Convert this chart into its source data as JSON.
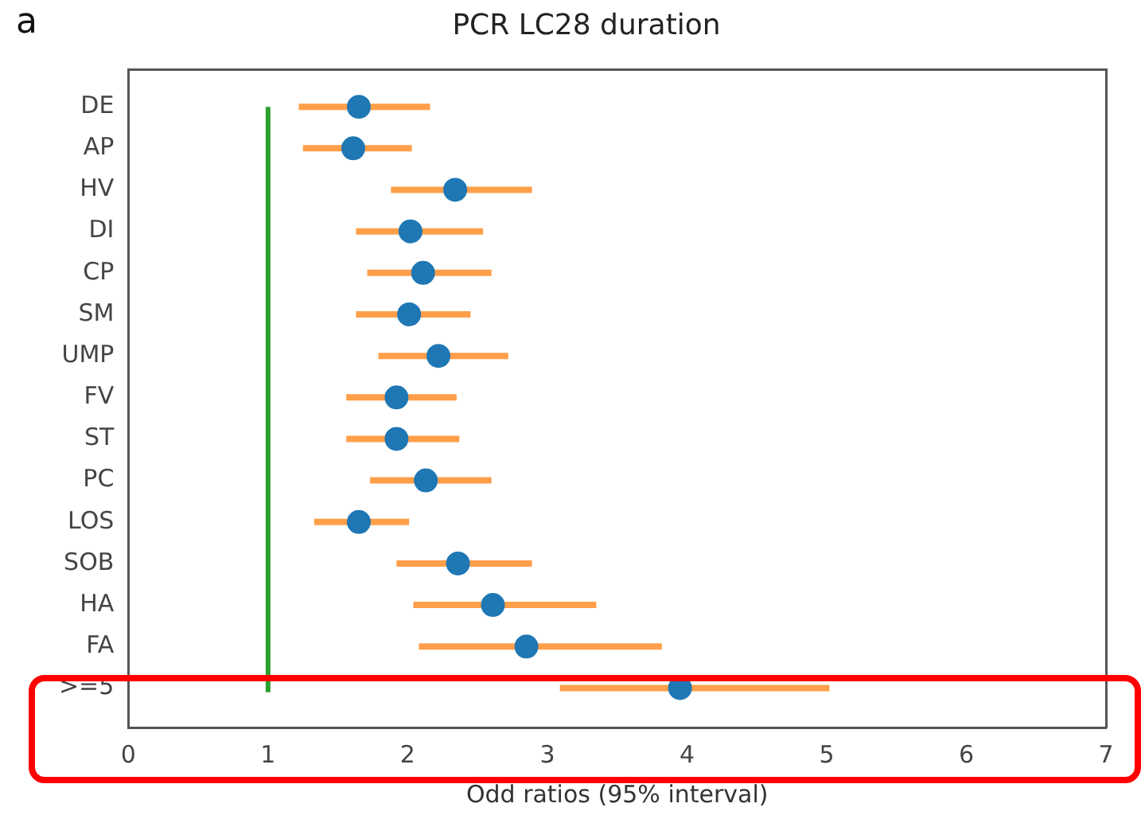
{
  "chart_data": {
    "type": "scatter",
    "orientation": "horizontal",
    "title": "PCR LC28 duration",
    "xlabel": "Odd ratios (95% interval)",
    "annotations": [
      "a"
    ],
    "categories": [
      "DE",
      "AP",
      "HV",
      "DI",
      "CP",
      "SM",
      "UMP",
      "FV",
      "ST",
      "PC",
      "LOS",
      "SOB",
      "HA",
      "FA",
      ">=5"
    ],
    "series": [
      {
        "color": "#1f77b4",
        "values": [
          1.65,
          1.61,
          2.34,
          2.02,
          2.11,
          2.01,
          2.22,
          1.92,
          1.92,
          2.13,
          1.65,
          2.36,
          2.61,
          2.85,
          3.95
        ],
        "errors": [
          [
            1.22,
            2.16
          ],
          [
            1.25,
            2.03
          ],
          [
            1.88,
            2.89
          ],
          [
            1.63,
            2.54
          ],
          [
            1.71,
            2.6
          ],
          [
            1.63,
            2.45
          ],
          [
            1.79,
            2.72
          ],
          [
            1.56,
            2.35
          ],
          [
            1.56,
            2.37
          ],
          [
            1.73,
            2.6
          ],
          [
            1.33,
            2.01
          ],
          [
            1.92,
            2.89
          ],
          [
            2.04,
            3.35
          ],
          [
            2.08,
            3.82
          ],
          [
            3.09,
            5.02
          ]
        ]
      }
    ],
    "xlim": [
      0,
      7
    ],
    "xticks": [
      0,
      1,
      2,
      3,
      4,
      5,
      6,
      7
    ],
    "ref_lines": [
      {
        "axis": "x",
        "value": 1,
        "color": "#2ca02c"
      }
    ],
    "marker": "circle",
    "grid": false,
    "legend": false
  }
}
